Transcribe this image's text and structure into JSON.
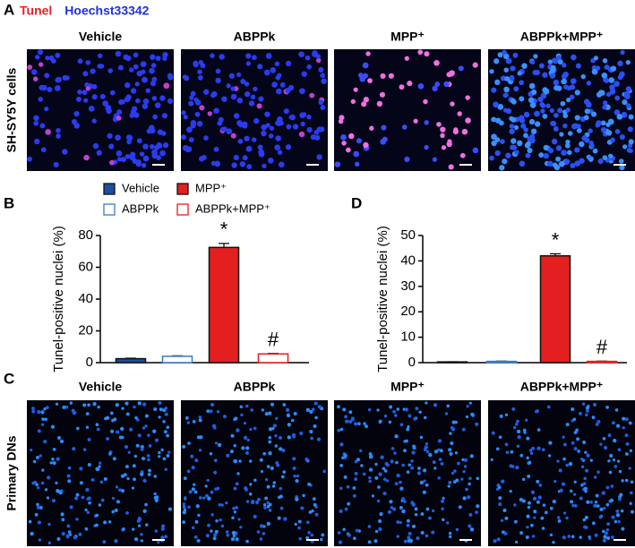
{
  "panel_a": {
    "label": "A",
    "stain_legend": [
      {
        "text": "Tunel",
        "color": "#e8202a"
      },
      {
        "text": "Hoechst33342",
        "color": "#2030d8"
      }
    ],
    "columns": [
      "Vehicle",
      "ABPPk",
      "MPP⁺",
      "ABPPk+MPP⁺"
    ],
    "row_label": "SH-SY5Y cells"
  },
  "panel_c": {
    "label": "C",
    "columns": [
      "Vehicle",
      "ABPPk",
      "MPP⁺",
      "ABPPk+MPP⁺"
    ],
    "row_label": "Primary DNs"
  },
  "chart_data": [
    {
      "type": "bar",
      "panel_label": "B",
      "ylabel": "Tunel-positive nuclei (%)",
      "categories": [
        "Vehicle",
        "ABPPk",
        "MPP⁺",
        "ABPPk+MPP⁺"
      ],
      "values": [
        2.5,
        4,
        72.5,
        5.5
      ],
      "errors": [
        0.3,
        0.3,
        2.5,
        0.3
      ],
      "colors": [
        "#1d4f9e",
        "#3a78c9",
        "#e3201f",
        "#e3201f"
      ],
      "filled": [
        true,
        false,
        true,
        false
      ],
      "annotations": [
        null,
        null,
        "*",
        "#"
      ],
      "ylim": [
        0,
        80
      ],
      "yticks": [
        0,
        20,
        40,
        60,
        80
      ]
    },
    {
      "type": "bar",
      "panel_label": "D",
      "ylabel": "Tunel-positive nuclei (%)",
      "categories": [
        null,
        null,
        null,
        null
      ],
      "values": [
        0.3,
        0.5,
        42,
        0.5
      ],
      "errors": [
        0.05,
        0.1,
        0.8,
        0.1
      ],
      "colors": [
        "#1d4f9e",
        "#3a78c9",
        "#e3201f",
        "#e3201f"
      ],
      "filled": [
        true,
        false,
        true,
        false
      ],
      "annotations": [
        null,
        null,
        "*",
        "#"
      ],
      "ylim": [
        0,
        50
      ],
      "yticks": [
        0,
        10,
        20,
        30,
        40,
        50
      ]
    }
  ]
}
